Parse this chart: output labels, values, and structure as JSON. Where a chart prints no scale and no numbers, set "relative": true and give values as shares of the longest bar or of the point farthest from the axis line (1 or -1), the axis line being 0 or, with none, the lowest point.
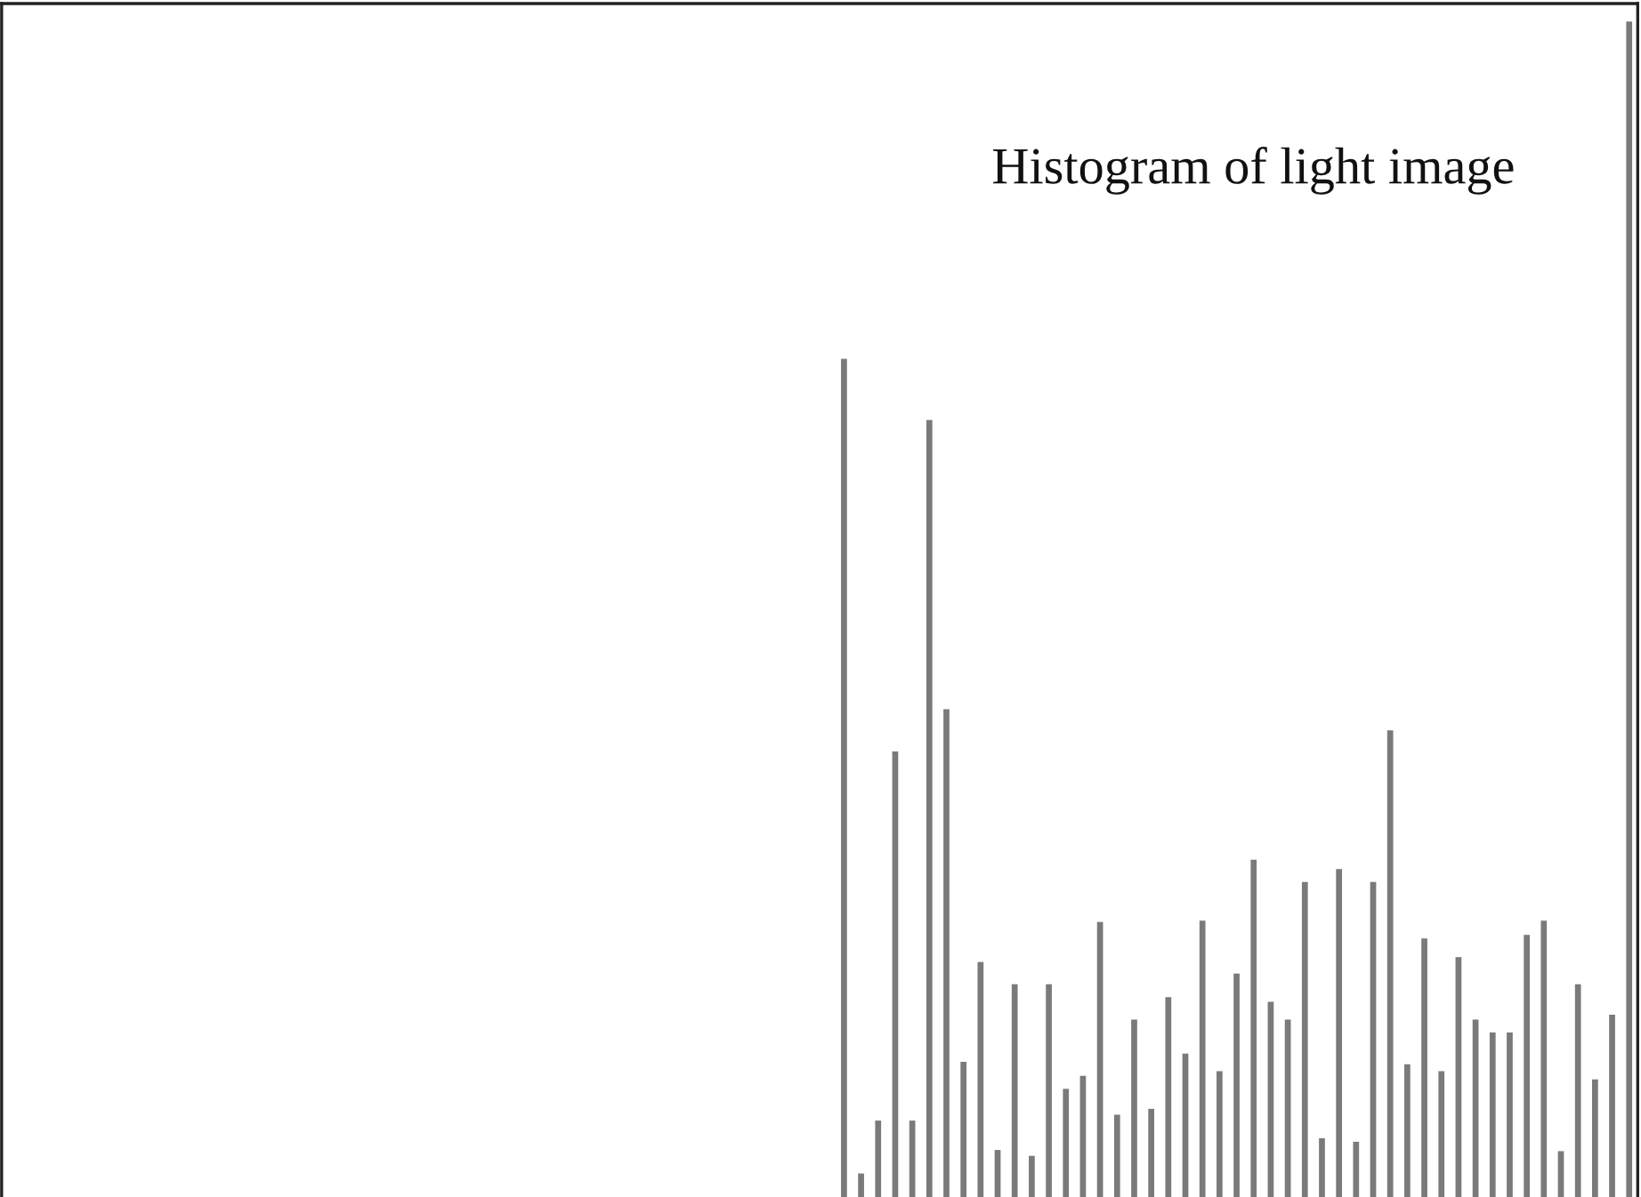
{
  "chart_data": {
    "type": "bar",
    "title": "Histogram of light image",
    "relative": true,
    "color": "#7a7a7a",
    "grid": false,
    "legend": false,
    "categories": [
      null,
      null,
      null,
      null,
      null,
      null,
      null,
      null,
      null,
      null,
      null,
      null,
      null,
      null,
      null,
      null,
      null,
      null,
      null,
      null,
      null,
      null,
      null,
      null,
      null,
      null,
      null,
      null,
      null,
      null,
      null,
      null,
      null,
      null,
      null,
      null,
      null,
      null,
      null,
      null,
      null,
      null,
      null,
      null,
      null,
      null,
      null
    ],
    "values": [
      0.713,
      0.02,
      0.065,
      0.379,
      0.065,
      0.661,
      0.415,
      0.115,
      0.2,
      0.04,
      0.181,
      0.035,
      0.181,
      0.092,
      0.103,
      0.234,
      0.07,
      0.151,
      0.075,
      0.17,
      0.122,
      0.235,
      0.107,
      0.19,
      0.287,
      0.166,
      0.151,
      0.268,
      0.05,
      0.279,
      0.047,
      0.268,
      0.397,
      0.113,
      0.22,
      0.107,
      0.204,
      0.151,
      0.14,
      0.14,
      0.223,
      0.235,
      0.039,
      0.181,
      0.1,
      0.155,
      1
    ]
  }
}
